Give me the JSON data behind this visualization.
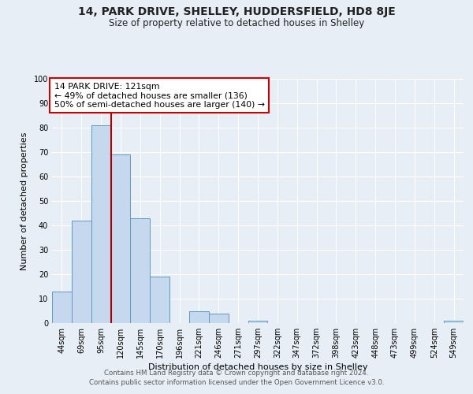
{
  "title": "14, PARK DRIVE, SHELLEY, HUDDERSFIELD, HD8 8JE",
  "subtitle": "Size of property relative to detached houses in Shelley",
  "xlabel": "Distribution of detached houses by size in Shelley",
  "ylabel": "Number of detached properties",
  "bar_labels": [
    "44sqm",
    "69sqm",
    "95sqm",
    "120sqm",
    "145sqm",
    "170sqm",
    "196sqm",
    "221sqm",
    "246sqm",
    "271sqm",
    "297sqm",
    "322sqm",
    "347sqm",
    "372sqm",
    "398sqm",
    "423sqm",
    "448sqm",
    "473sqm",
    "499sqm",
    "524sqm",
    "549sqm"
  ],
  "bar_values": [
    13,
    42,
    81,
    69,
    43,
    19,
    0,
    5,
    4,
    0,
    1,
    0,
    0,
    0,
    0,
    0,
    0,
    0,
    0,
    0,
    1
  ],
  "bar_color": "#c5d8ed",
  "bar_edge_color": "#5b9abf",
  "vline_color": "#aa0000",
  "annotation_title": "14 PARK DRIVE: 121sqm",
  "annotation_line1": "← 49% of detached houses are smaller (136)",
  "annotation_line2": "50% of semi-detached houses are larger (140) →",
  "annotation_box_color": "#ffffff",
  "annotation_box_edge": "#cc0000",
  "ylim": [
    0,
    100
  ],
  "yticks": [
    0,
    10,
    20,
    30,
    40,
    50,
    60,
    70,
    80,
    90,
    100
  ],
  "footer_line1": "Contains HM Land Registry data © Crown copyright and database right 2024.",
  "footer_line2": "Contains public sector information licensed under the Open Government Licence v3.0.",
  "bg_color": "#e8eef5",
  "plot_bg_color": "#e8eef5",
  "grid_color": "#ffffff",
  "vline_bar_index": 3
}
